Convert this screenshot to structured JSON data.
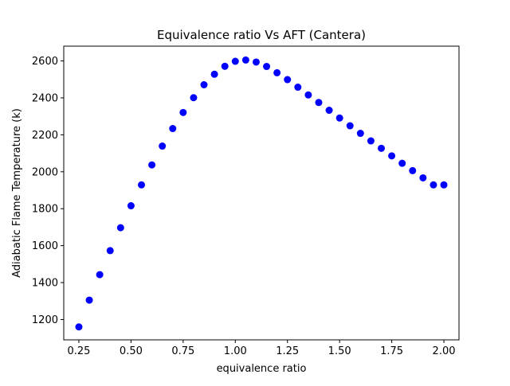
{
  "chart_data": {
    "type": "scatter",
    "title": "Equivalence ratio Vs AFT (Cantera)",
    "xlabel": "equivalence ratio",
    "ylabel": "Adiabatic Flame Temperature (k)",
    "xlim": [
      0.1775,
      2.0725
    ],
    "ylim": [
      1090,
      2680
    ],
    "xticks": [
      0.25,
      0.5,
      0.75,
      1.0,
      1.25,
      1.5,
      1.75,
      2.0
    ],
    "xtick_labels": [
      "0.25",
      "0.50",
      "0.75",
      "1.00",
      "1.25",
      "1.50",
      "1.75",
      "2.00"
    ],
    "yticks": [
      1200,
      1400,
      1600,
      1800,
      2000,
      2200,
      2400,
      2600
    ],
    "ytick_labels": [
      "1200",
      "1400",
      "1600",
      "1800",
      "2000",
      "2200",
      "2400",
      "2600"
    ],
    "grid": false,
    "legend": false,
    "marker_color": "#0000ff",
    "series": [
      {
        "x": [
          0.25,
          0.3,
          0.35,
          0.4,
          0.45,
          0.5,
          0.55,
          0.6,
          0.65,
          0.7,
          0.75,
          0.8,
          0.85,
          0.9,
          0.95,
          1.0,
          1.05,
          1.1,
          1.15,
          1.2,
          1.25,
          1.3,
          1.35,
          1.4,
          1.45,
          1.5,
          1.55,
          1.6,
          1.65,
          1.7,
          1.75,
          1.8,
          1.85,
          1.9,
          1.95,
          2.0
        ],
        "y": [
          1160,
          1305,
          1443,
          1573,
          1697,
          1816,
          1929,
          2037,
          2139,
          2234,
          2321,
          2401,
          2471,
          2528,
          2571,
          2598,
          2605,
          2594,
          2570,
          2536,
          2499,
          2458,
          2416,
          2375,
          2333,
          2291,
          2249,
          2208,
          2167,
          2127,
          2086,
          2046,
          2006,
          1967,
          1929,
          1929
        ]
      }
    ]
  }
}
